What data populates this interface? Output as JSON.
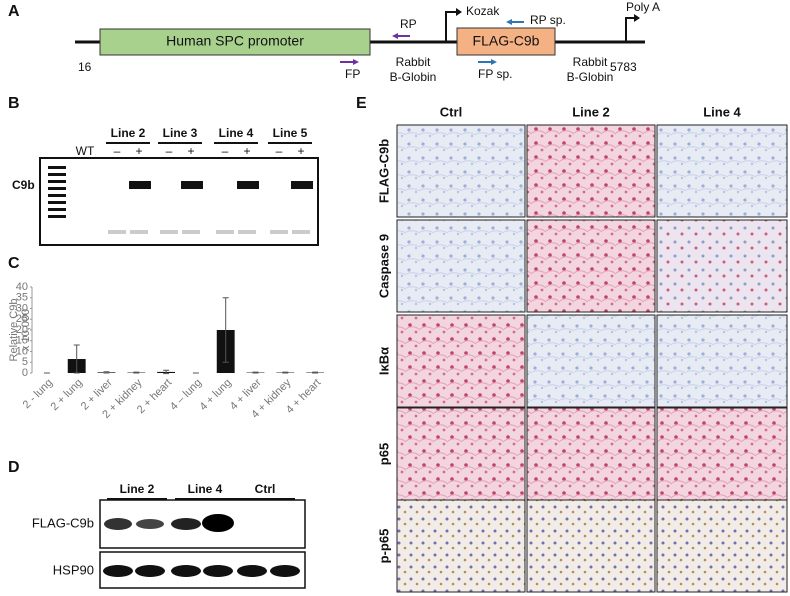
{
  "panels": {
    "a": "A",
    "b": "B",
    "c": "C",
    "d": "D",
    "e": "E"
  },
  "construct": {
    "promoter": "Human SPC promoter",
    "start": "16",
    "end": "5783",
    "rp": "RP",
    "fp": "FP",
    "kozak": "Kozak",
    "gene": "FLAG-C9b",
    "rp_sp": "RP sp.",
    "fp_sp": "FP sp.",
    "poly_a": "Poly A",
    "globin_left": [
      "Rabbit",
      "B-Globin"
    ],
    "globin_right": [
      "Rabbit",
      "B-Globin"
    ]
  },
  "gel": {
    "wt": "WT",
    "lines": [
      "Line 2",
      "Line 3",
      "Line 4",
      "Line 5"
    ],
    "lane_signs": [
      "–",
      "+",
      "–",
      "+",
      "–",
      "+",
      "–",
      "+"
    ],
    "band_label": "C9b"
  },
  "chart_data": {
    "type": "bar",
    "y_label": [
      "Relative C9b",
      "x 10,000"
    ],
    "categories": [
      "2 - lung",
      "2 + lung",
      "2 + liver",
      "2 + kidney",
      "2 + heart",
      "4 – lung",
      "4 + lung",
      "4 + liver",
      "4 + kidney",
      "4 + heart"
    ],
    "values": [
      0,
      6.5,
      0.3,
      0.2,
      0.5,
      0,
      20,
      0.2,
      0.2,
      0.2
    ],
    "errors": [
      0,
      6.5,
      0.3,
      0.2,
      0.8,
      0,
      15,
      0.2,
      0.2,
      0.2
    ],
    "color": "#111111",
    "ylim": [
      0,
      40
    ],
    "yticks": [
      0,
      5,
      10,
      15,
      20,
      25,
      30,
      35,
      40
    ]
  },
  "western": {
    "lines": [
      "Line 2",
      "Line 4",
      "Ctrl"
    ],
    "rows": [
      "FLAG-C9b",
      "HSP90"
    ]
  },
  "histology": {
    "columns": [
      "Ctrl",
      "Line 2",
      "Line 4"
    ],
    "rows": [
      "FLAG-C9b",
      "Caspase 9",
      "IκBα",
      "p65",
      "p-p65"
    ]
  }
}
